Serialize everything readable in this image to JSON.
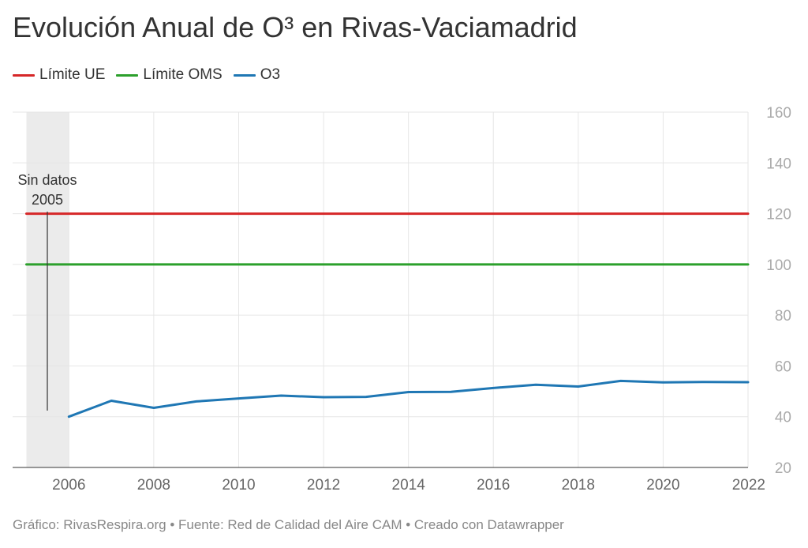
{
  "chart_data": {
    "type": "line",
    "title": "Evolución Anual de O³ en Rivas-Vaciamadrid",
    "x_ticks": [
      "2006",
      "2008",
      "2010",
      "2012",
      "2014",
      "2016",
      "2018",
      "2020",
      "2022"
    ],
    "y_ticks": [
      "20",
      "40",
      "60",
      "80",
      "100",
      "120",
      "140",
      "160"
    ],
    "xlim": [
      2005,
      2022
    ],
    "ylim": [
      20,
      160
    ],
    "grid": true,
    "legend_position": "top-left",
    "series": [
      {
        "name": "Límite UE",
        "color": "#d62728",
        "x": [
          2005,
          2022
        ],
        "values": [
          120,
          120
        ]
      },
      {
        "name": "Límite OMS",
        "color": "#2ca02c",
        "x": [
          2005,
          2022
        ],
        "values": [
          100,
          100
        ]
      },
      {
        "name": "O3",
        "color": "#1f77b4",
        "x": [
          2006,
          2007,
          2008,
          2009,
          2010,
          2011,
          2012,
          2013,
          2014,
          2015,
          2016,
          2017,
          2018,
          2019,
          2020,
          2021,
          2022
        ],
        "values": [
          40,
          46.3,
          43.5,
          46,
          47.2,
          48.3,
          47.7,
          47.8,
          49.7,
          49.8,
          51.3,
          52.6,
          51.9,
          54.1,
          53.5,
          53.7,
          53.6
        ]
      }
    ],
    "annotation": {
      "line1": "Sin datos",
      "line2": "2005",
      "shaded_range": [
        2005,
        2006
      ]
    }
  },
  "footer": "Gráfico: RivasRespira.org • Fuente: Red de Calidad del Aire CAM • Creado con Datawrapper"
}
